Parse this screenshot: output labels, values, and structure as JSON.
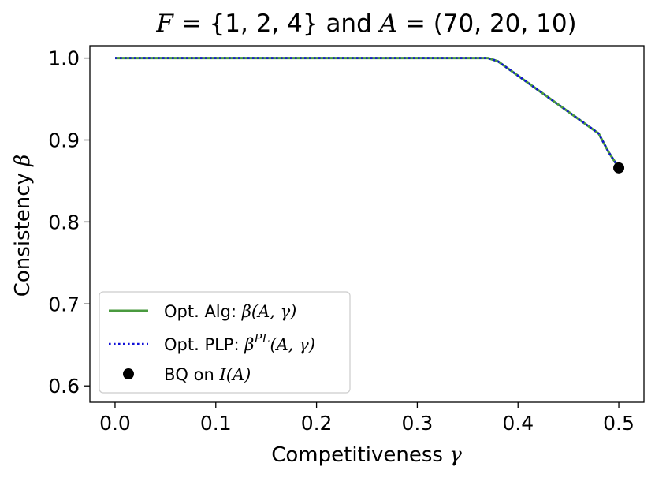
{
  "chart_data": {
    "type": "line",
    "title": {
      "parts": [
        {
          "t": "F",
          "math": true
        },
        {
          "t": " = {1, 2, 4} ",
          "math": false
        },
        {
          "t": "and",
          "math": false
        },
        {
          "t": " A",
          "math": true
        },
        {
          "t": " = (70, 20, 10)",
          "math": false
        }
      ]
    },
    "xlabel": {
      "text": "Competitiveness ",
      "symbol": "γ"
    },
    "ylabel": {
      "text": "Consistency ",
      "symbol": "β"
    },
    "xlim": [
      -0.025,
      0.525
    ],
    "ylim": [
      0.58,
      1.015
    ],
    "xticks": [
      0.0,
      0.1,
      0.2,
      0.3,
      0.4,
      0.5
    ],
    "xtick_labels": [
      "0.0",
      "0.1",
      "0.2",
      "0.3",
      "0.4",
      "0.5"
    ],
    "yticks": [
      0.6,
      0.7,
      0.8,
      0.9,
      1.0
    ],
    "ytick_labels": [
      "0.6",
      "0.7",
      "0.8",
      "0.9",
      "1.0"
    ],
    "grid": false,
    "legend_position": "lower-left",
    "series": [
      {
        "name": "Opt. Alg: β(A, γ)",
        "style": "solid",
        "color": "#4a9a3f",
        "x": [
          0.0,
          0.37,
          0.38,
          0.48,
          0.49,
          0.5
        ],
        "y": [
          1.0,
          1.0,
          0.996,
          0.908,
          0.885,
          0.866
        ]
      },
      {
        "name": "Opt. PLP: β^PL(A, γ)",
        "style": "dotted",
        "color": "#1010d8",
        "x": [
          0.0,
          0.37,
          0.38,
          0.48,
          0.49,
          0.5
        ],
        "y": [
          1.0,
          1.0,
          0.996,
          0.908,
          0.885,
          0.866
        ]
      }
    ],
    "points": [
      {
        "name": "BQ on I(A)",
        "x": 0.5,
        "y": 0.866,
        "color": "#000000"
      }
    ],
    "legend": [
      {
        "pre": "Opt. Alg: ",
        "math": "β(A, γ)",
        "sup": ""
      },
      {
        "pre": "Opt. PLP: ",
        "math": "β",
        "sup": "PL",
        "post": "(A, γ)"
      },
      {
        "pre": "BQ on ",
        "math": "I(A)",
        "sup": ""
      }
    ],
    "colors": {
      "alg": "#4a9a3f",
      "plp": "#1010d8",
      "bq": "#000000"
    }
  }
}
